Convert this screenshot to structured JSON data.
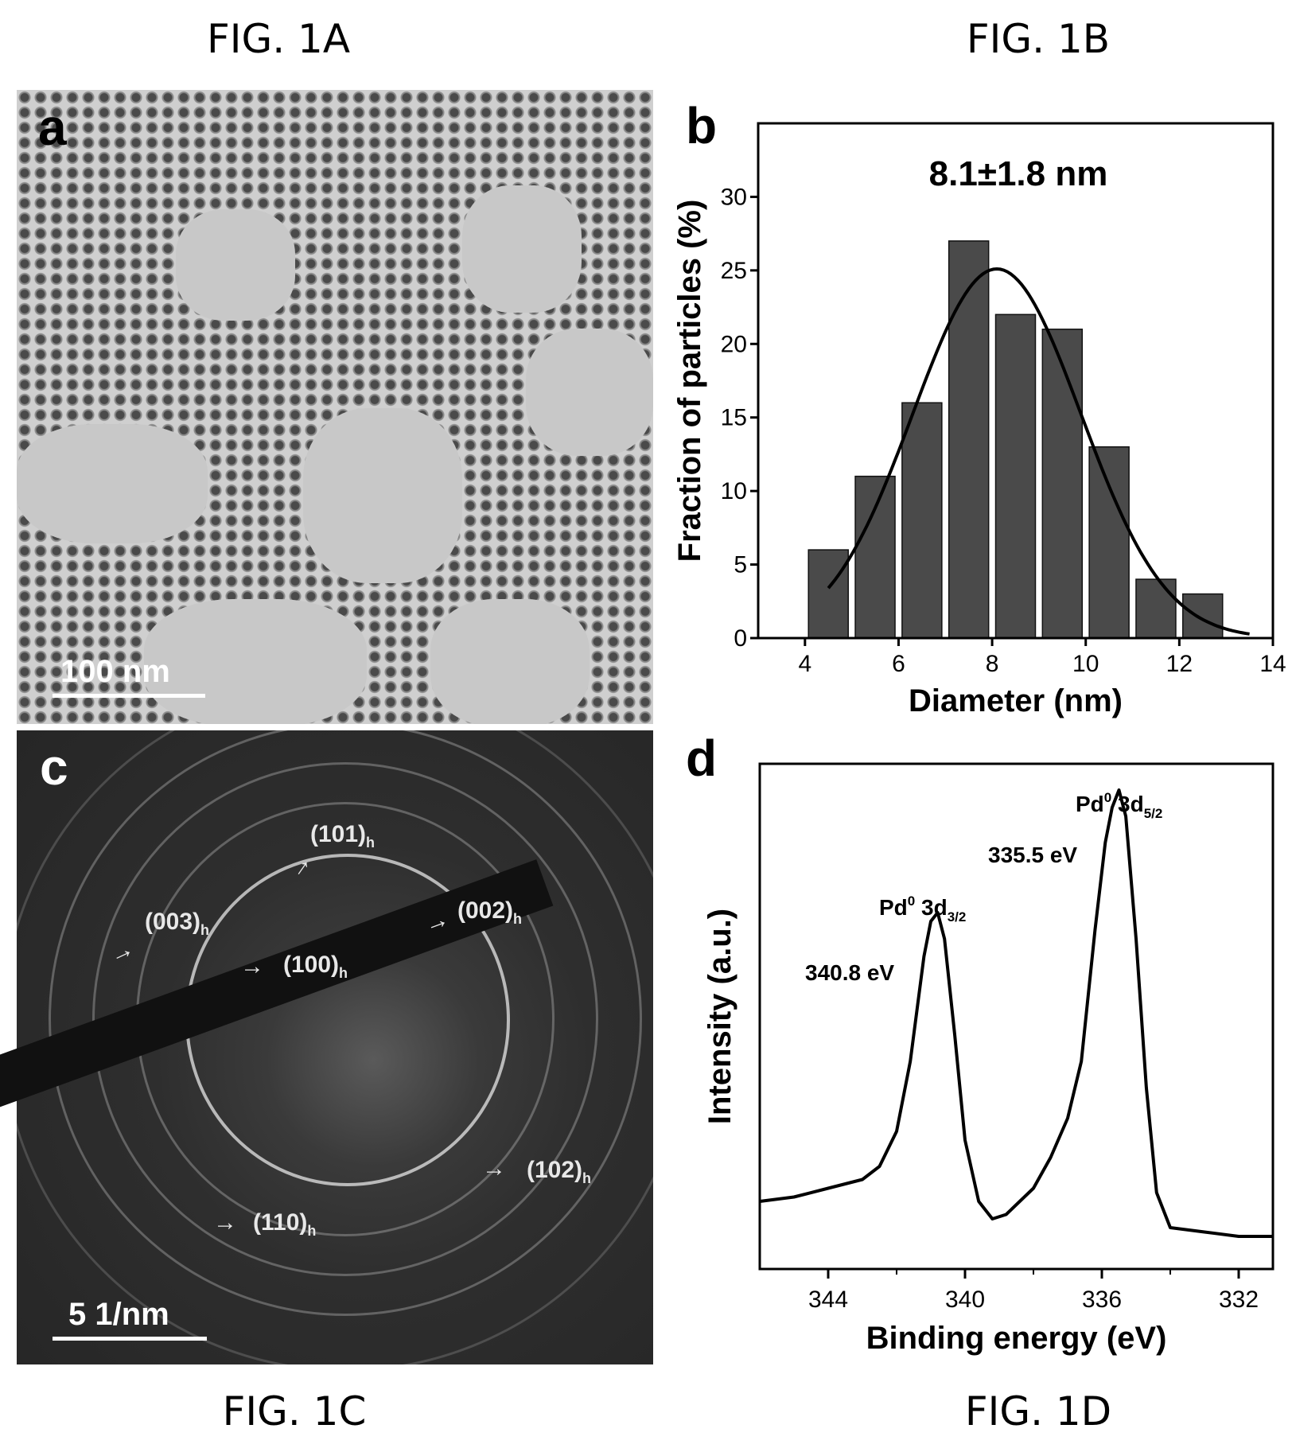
{
  "captions": {
    "fig1a": "FIG. 1A",
    "fig1b": "FIG. 1B",
    "fig1c": "FIG. 1C",
    "fig1d": "FIG. 1D"
  },
  "panels": {
    "a": {
      "letter": "a",
      "scalebar": "100 nm"
    },
    "c": {
      "letter": "c",
      "scalebar": "5 1/nm",
      "ring_labels": [
        {
          "text": "(101)",
          "sub": "h"
        },
        {
          "text": "(003)",
          "sub": "h"
        },
        {
          "text": "(002)",
          "sub": "h"
        },
        {
          "text": "(100)",
          "sub": "h"
        },
        {
          "text": "(102)",
          "sub": "h"
        },
        {
          "text": "(110)",
          "sub": "h"
        }
      ]
    }
  },
  "chart_data": [
    {
      "panel": "b",
      "type": "bar",
      "annotation": "8.1±1.8 nm",
      "xlabel": "Diameter (nm)",
      "ylabel": "Fraction of particles (%)",
      "xlim": [
        3,
        14
      ],
      "ylim": [
        0,
        35
      ],
      "xticks": [
        4,
        6,
        8,
        10,
        12,
        14
      ],
      "yticks": [
        0,
        5,
        10,
        15,
        20,
        25,
        30
      ],
      "bin_width": 0.85,
      "x": [
        4.5,
        5.5,
        6.5,
        7.5,
        8.5,
        9.5,
        10.5,
        11.5,
        12.5
      ],
      "values": [
        6,
        11,
        16,
        27,
        22,
        21,
        13,
        4,
        3
      ],
      "fit": {
        "type": "gaussian",
        "mean": 8.1,
        "sigma": 1.8,
        "peak": 25.1,
        "x_range": [
          4.5,
          13.5
        ]
      },
      "bar_color": "#4a4a4a"
    },
    {
      "panel": "d",
      "type": "line",
      "xlabel": "Binding energy (eV)",
      "ylabel": "Intensity (a.u.)",
      "xlim": [
        346,
        331
      ],
      "x_reversed": true,
      "xticks": [
        344,
        340,
        336,
        332
      ],
      "yticks_shown": false,
      "series": [
        {
          "x": [
            346,
            345,
            344,
            343,
            342.5,
            342,
            341.6,
            341.2,
            341.0,
            340.8,
            340.6,
            340.3,
            340.0,
            339.6,
            339.2,
            338.8,
            338.0,
            337.5,
            337.0,
            336.6,
            336.2,
            335.9,
            335.7,
            335.5,
            335.3,
            335.0,
            334.7,
            334.4,
            334.0,
            333.0,
            332.0,
            331.0
          ],
          "y": [
            10,
            11,
            13,
            15,
            18,
            26,
            42,
            66,
            74,
            76,
            70,
            48,
            24,
            10,
            6,
            7,
            13,
            20,
            29,
            42,
            72,
            92,
            100,
            104,
            98,
            70,
            36,
            12,
            4,
            3,
            2,
            2
          ]
        }
      ],
      "peak_annotations": [
        {
          "label": "Pd",
          "sup": "0",
          "orbital": "3d",
          "sub": "3/2",
          "energy": "340.8 eV"
        },
        {
          "label": "Pd",
          "sup": "0",
          "orbital": "3d",
          "sub": "5/2",
          "energy": "335.5 eV"
        }
      ]
    }
  ]
}
